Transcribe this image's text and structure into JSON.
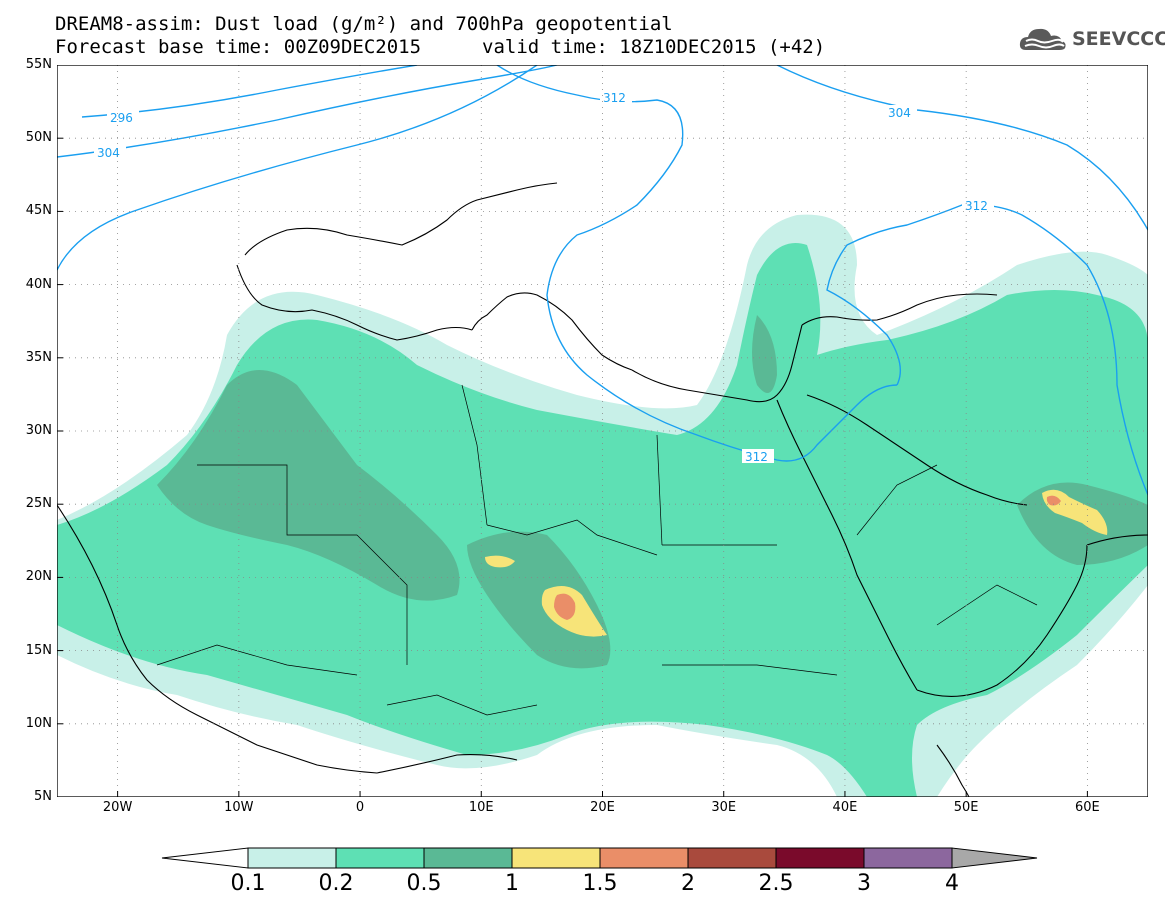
{
  "header": {
    "line1": "DREAM8-assim: Dust load (g/m²) and 700hPa geopotential",
    "line2_left": "Forecast base time: 00Z09DEC2015",
    "line2_right": "valid time: 18Z10DEC2015 (+42)"
  },
  "logo": {
    "text": "SEEVCCC",
    "icon": "cloud-icon",
    "color": "#555555"
  },
  "map": {
    "lon_range": [
      -25,
      65
    ],
    "lat_range": [
      5,
      55
    ],
    "y_ticks": [
      "55N",
      "50N",
      "45N",
      "40N",
      "35N",
      "30N",
      "25N",
      "20N",
      "15N",
      "10N",
      "5N"
    ],
    "x_ticks": [
      "20W",
      "10W",
      "0",
      "10E",
      "20E",
      "30E",
      "40E",
      "50E",
      "60E"
    ],
    "contour_color": "#1a9ff0",
    "contour_labels": [
      "296",
      "304",
      "312",
      "304",
      "312",
      "312"
    ]
  },
  "colorbar": {
    "levels": [
      "0.1",
      "0.2",
      "0.5",
      "1",
      "1.5",
      "2",
      "2.5",
      "3",
      "4"
    ],
    "colors": [
      "#c8f0e8",
      "#5ee0b4",
      "#5ab995",
      "#f7e479",
      "#ea8e68",
      "#a94a3d",
      "#7a0a2b",
      "#8c679e",
      "#a8a8a8"
    ]
  }
}
